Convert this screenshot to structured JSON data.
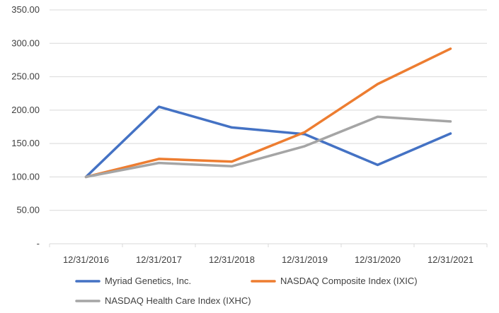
{
  "chart_data": {
    "type": "line",
    "title": "",
    "xlabel": "",
    "ylabel": "",
    "categories": [
      "12/31/2016",
      "12/31/2017",
      "12/31/2018",
      "12/31/2019",
      "12/31/2020",
      "12/31/2021"
    ],
    "y_ticks": [
      "-",
      "50.00",
      "100.00",
      "150.00",
      "200.00",
      "250.00",
      "300.00",
      "350.00"
    ],
    "ylim": [
      0,
      350
    ],
    "grid": true,
    "legend_position": "bottom",
    "series": [
      {
        "name": "Myriad Genetics, Inc.",
        "color": "#4472C4",
        "values": [
          100,
          205,
          174,
          164,
          118,
          165
        ]
      },
      {
        "name": "NASDAQ Composite Index (IXIC)",
        "color": "#ED7D31",
        "values": [
          100,
          127,
          123,
          167,
          239,
          292
        ]
      },
      {
        "name": "NASDAQ Health Care Index (IXHC)",
        "color": "#A5A5A5",
        "values": [
          100,
          121,
          116,
          146,
          190,
          183
        ]
      }
    ]
  }
}
